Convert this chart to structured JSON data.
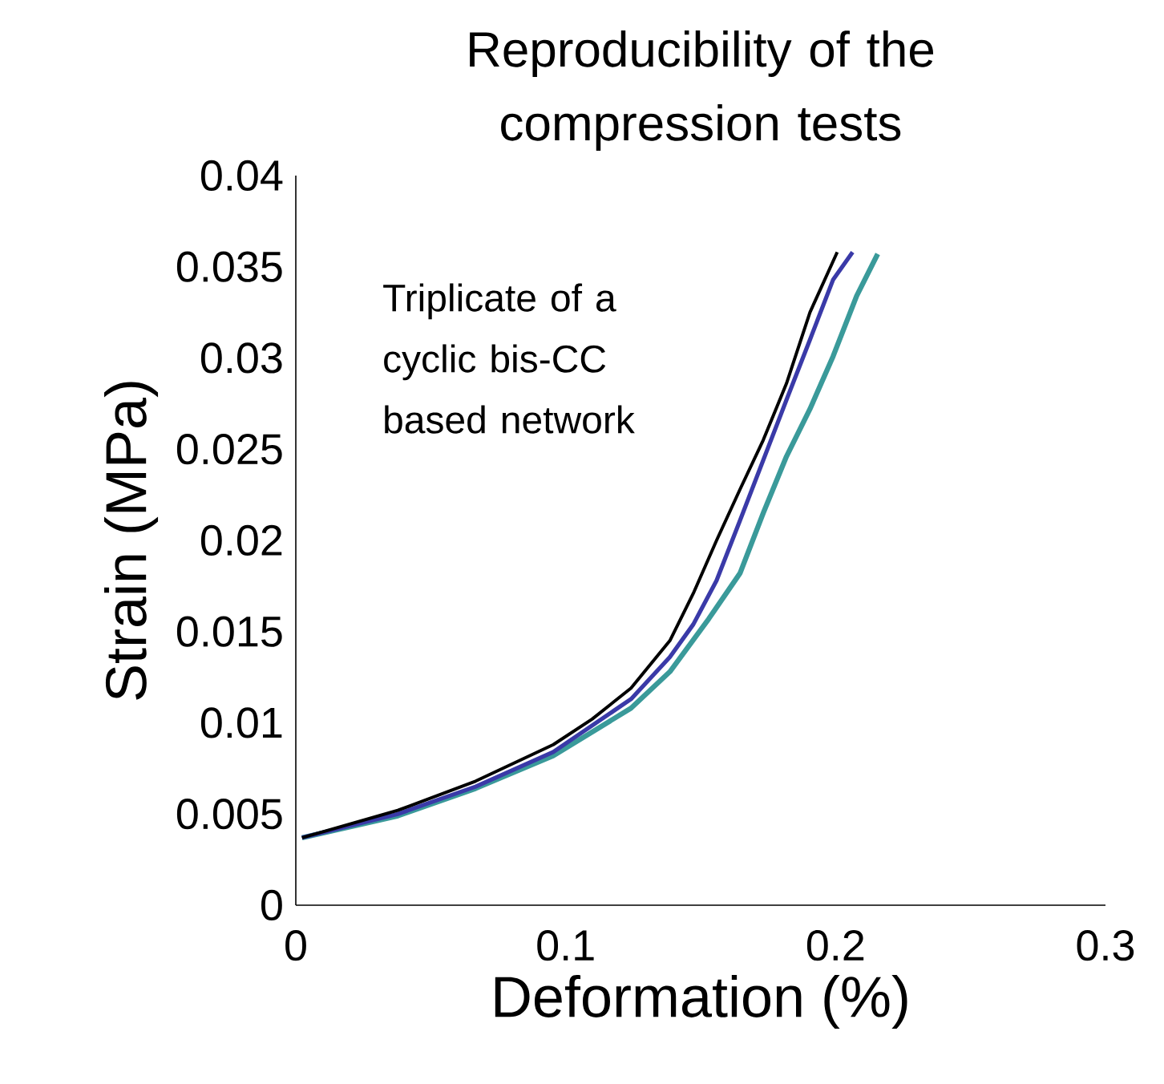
{
  "chart_data": {
    "type": "line",
    "title": "Reproducibility of the compression tests",
    "xlabel": "Deformation (%)",
    "ylabel": "Strain (MPa)",
    "annotations": [
      "Triplicate of a cyclic bis-CC based network"
    ],
    "xlim": [
      0,
      0.3
    ],
    "ylim": [
      0,
      0.04
    ],
    "xticks": [
      0,
      0.1,
      0.2,
      0.3
    ],
    "yticks": [
      0,
      0.005,
      0.01,
      0.015,
      0.02,
      0.025,
      0.03,
      0.035,
      0.04
    ],
    "series": [
      {
        "color": "#000000",
        "x": [
          0.0023,
          0.0378,
          0.0666,
          0.0954,
          0.1098,
          0.1242,
          0.1386,
          0.1473,
          0.1559,
          0.1646,
          0.1732,
          0.1818,
          0.1905,
          0.2006
        ],
        "values": [
          0.0037,
          0.0052,
          0.0068,
          0.0088,
          0.0102,
          0.0119,
          0.0145,
          0.0171,
          0.02,
          0.0228,
          0.0255,
          0.0286,
          0.0325,
          0.0358
        ]
      },
      {
        "color": "#3a3aa8",
        "x": [
          0.0023,
          0.0378,
          0.0666,
          0.0954,
          0.1242,
          0.1386,
          0.1473,
          0.1559,
          0.1646,
          0.1732,
          0.1818,
          0.1905,
          0.1991,
          0.2063
        ],
        "values": [
          0.0037,
          0.005,
          0.0065,
          0.0084,
          0.0113,
          0.0136,
          0.0154,
          0.0178,
          0.0211,
          0.0244,
          0.0277,
          0.031,
          0.0343,
          0.0358
        ]
      },
      {
        "color": "#3a9a9a",
        "x": [
          0.0023,
          0.0378,
          0.0666,
          0.0954,
          0.1242,
          0.1386,
          0.153,
          0.1646,
          0.1732,
          0.1818,
          0.1905,
          0.1991,
          0.2078,
          0.2156
        ],
        "values": [
          0.0037,
          0.0049,
          0.0064,
          0.0082,
          0.0108,
          0.0128,
          0.0157,
          0.0182,
          0.0215,
          0.0246,
          0.0272,
          0.0301,
          0.0334,
          0.0357
        ]
      }
    ]
  }
}
